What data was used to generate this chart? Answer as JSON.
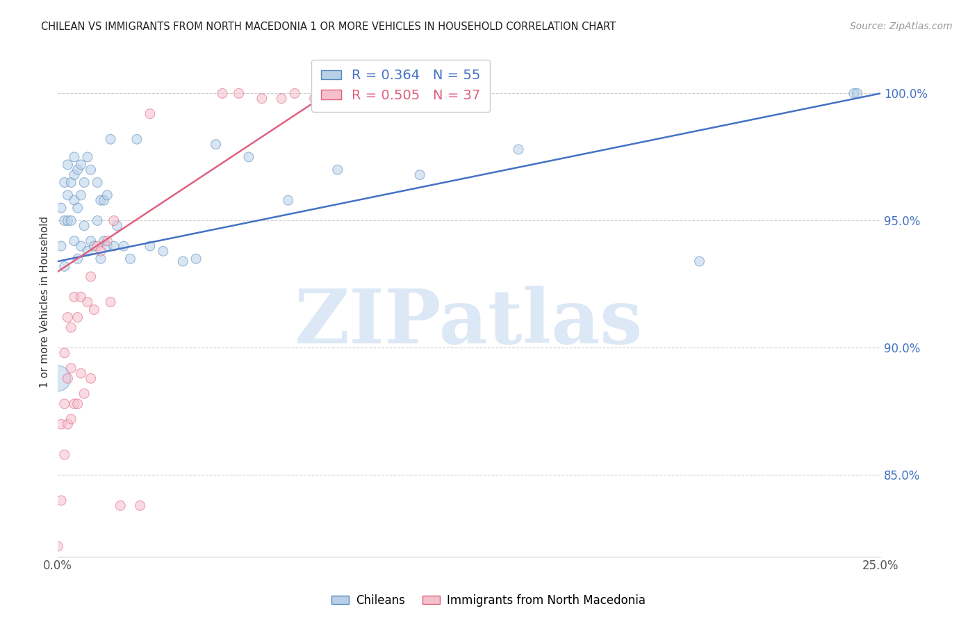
{
  "title": "CHILEAN VS IMMIGRANTS FROM NORTH MACEDONIA 1 OR MORE VEHICLES IN HOUSEHOLD CORRELATION CHART",
  "source": "Source: ZipAtlas.com",
  "ylabel": "1 or more Vehicles in Household",
  "xlim": [
    0.0,
    0.25
  ],
  "ylim": [
    0.818,
    1.018
  ],
  "xticks": [
    0.0,
    0.05,
    0.1,
    0.15,
    0.2,
    0.25
  ],
  "xticklabels": [
    "0.0%",
    "",
    "",
    "",
    "",
    "25.0%"
  ],
  "yticks": [
    0.85,
    0.9,
    0.95,
    1.0
  ],
  "yticklabels": [
    "85.0%",
    "90.0%",
    "95.0%",
    "100.0%"
  ],
  "blue_R": 0.364,
  "blue_N": 55,
  "pink_R": 0.505,
  "pink_N": 37,
  "blue_fill": "#b8d0e8",
  "pink_fill": "#f5c0cc",
  "blue_edge": "#5588bb",
  "pink_edge": "#e06080",
  "blue_line": "#4472c4",
  "pink_line": "#e06080",
  "ytick_color": "#4472c4",
  "xtick_color": "#555555",
  "watermark_text": "ZIPatlas",
  "watermark_color": "#dce8f5",
  "legend_label_blue": "Chileans",
  "legend_label_pink": "Immigrants from North Macedonia",
  "blue_points_x": [
    0.0,
    0.001,
    0.001,
    0.002,
    0.002,
    0.002,
    0.003,
    0.003,
    0.003,
    0.004,
    0.004,
    0.005,
    0.005,
    0.005,
    0.005,
    0.006,
    0.006,
    0.006,
    0.007,
    0.007,
    0.007,
    0.008,
    0.008,
    0.009,
    0.009,
    0.01,
    0.01,
    0.011,
    0.012,
    0.012,
    0.013,
    0.013,
    0.014,
    0.014,
    0.015,
    0.015,
    0.016,
    0.017,
    0.018,
    0.02,
    0.022,
    0.024,
    0.028,
    0.032,
    0.038,
    0.042,
    0.048,
    0.058,
    0.07,
    0.085,
    0.11,
    0.14,
    0.195,
    0.242,
    0.243
  ],
  "blue_points_y": [
    0.888,
    0.94,
    0.955,
    0.932,
    0.95,
    0.965,
    0.95,
    0.96,
    0.972,
    0.95,
    0.965,
    0.942,
    0.958,
    0.968,
    0.975,
    0.935,
    0.955,
    0.97,
    0.94,
    0.96,
    0.972,
    0.948,
    0.965,
    0.938,
    0.975,
    0.942,
    0.97,
    0.94,
    0.95,
    0.965,
    0.935,
    0.958,
    0.942,
    0.958,
    0.94,
    0.96,
    0.982,
    0.94,
    0.948,
    0.94,
    0.935,
    0.982,
    0.94,
    0.938,
    0.934,
    0.935,
    0.98,
    0.975,
    0.958,
    0.97,
    0.968,
    0.978,
    0.934,
    1.0,
    1.0
  ],
  "blue_sizes_pt": [
    700,
    100,
    100,
    100,
    100,
    100,
    100,
    100,
    100,
    100,
    100,
    100,
    100,
    100,
    100,
    100,
    100,
    100,
    100,
    100,
    100,
    100,
    100,
    100,
    100,
    100,
    100,
    100,
    100,
    100,
    100,
    100,
    100,
    100,
    100,
    100,
    100,
    100,
    100,
    100,
    100,
    100,
    100,
    100,
    100,
    100,
    100,
    100,
    100,
    100,
    100,
    100,
    100,
    100,
    100
  ],
  "pink_points_x": [
    0.0,
    0.001,
    0.001,
    0.002,
    0.002,
    0.002,
    0.003,
    0.003,
    0.003,
    0.004,
    0.004,
    0.004,
    0.005,
    0.005,
    0.006,
    0.006,
    0.007,
    0.007,
    0.008,
    0.009,
    0.01,
    0.01,
    0.011,
    0.012,
    0.013,
    0.015,
    0.016,
    0.017,
    0.019,
    0.025,
    0.028,
    0.05,
    0.055,
    0.062,
    0.068,
    0.072,
    0.078
  ],
  "pink_points_y": [
    0.822,
    0.84,
    0.87,
    0.858,
    0.878,
    0.898,
    0.87,
    0.888,
    0.912,
    0.872,
    0.892,
    0.908,
    0.878,
    0.92,
    0.878,
    0.912,
    0.89,
    0.92,
    0.882,
    0.918,
    0.888,
    0.928,
    0.915,
    0.94,
    0.938,
    0.942,
    0.918,
    0.95,
    0.838,
    0.838,
    0.992,
    1.0,
    1.0,
    0.998,
    0.998,
    1.0,
    0.998
  ],
  "pink_sizes_pt": [
    100,
    100,
    100,
    100,
    100,
    100,
    100,
    100,
    100,
    100,
    100,
    100,
    100,
    100,
    100,
    100,
    100,
    100,
    100,
    100,
    100,
    100,
    100,
    100,
    100,
    100,
    100,
    100,
    100,
    100,
    100,
    100,
    100,
    100,
    100,
    100,
    100
  ]
}
